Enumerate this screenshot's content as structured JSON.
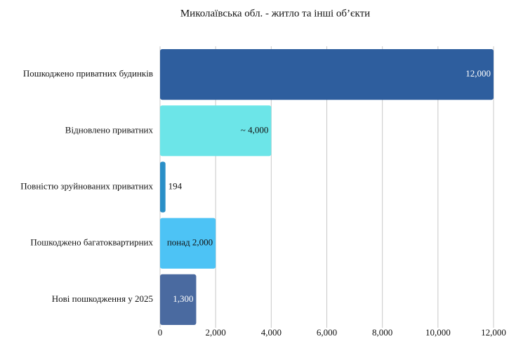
{
  "chart_data": {
    "type": "bar",
    "orientation": "horizontal",
    "title": "Миколаївська обл. - житло та інші об’єкти",
    "categories": [
      "Пошкоджено приватних будинків",
      "Відновлено приватних",
      "Повністю зруйнованих приватних",
      "Пошкоджено багатоквартирних",
      "Нові пошкодження у 2025"
    ],
    "values": [
      12000,
      4000,
      194,
      2000,
      1300
    ],
    "value_labels": [
      "12,000",
      "~ 4,000",
      "194",
      "понад 2,000",
      "1,300"
    ],
    "colors": [
      "#2e5e9e",
      "#6ce5e8",
      "#2a8fc7",
      "#4dc3f5",
      "#4a6aa0"
    ],
    "xlim": [
      0,
      12000
    ],
    "xticks": [
      0,
      {
        "value": 2000,
        "label": "2,000"
      },
      {
        "value": 4000,
        "label": "4,000"
      },
      {
        "value": 6000,
        "label": "6,000"
      },
      {
        "value": 8000,
        "label": "8,000"
      },
      {
        "value": 10000,
        "label": "10,000"
      },
      {
        "value": 12000,
        "label": "12,000"
      }
    ],
    "grid": true
  }
}
